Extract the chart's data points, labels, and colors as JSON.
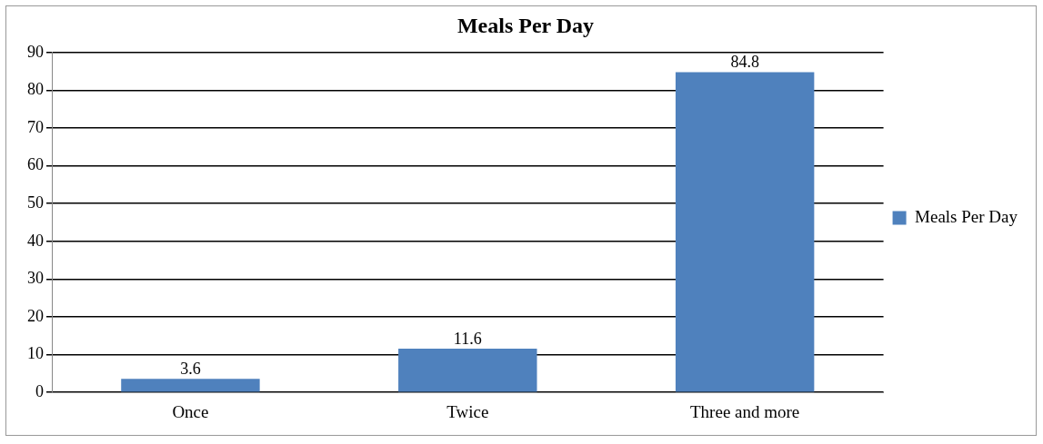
{
  "chart_data": {
    "type": "bar",
    "title": "Meals Per Day",
    "categories": [
      "Once",
      "Twice",
      "Three and more"
    ],
    "series": [
      {
        "name": "Meals Per Day",
        "color": "#4f81bd",
        "values": [
          3.6,
          11.6,
          84.8
        ]
      }
    ],
    "ylim": [
      0,
      90
    ],
    "yticks": [
      0,
      10,
      20,
      30,
      40,
      50,
      60,
      70,
      80,
      90
    ],
    "grid": "y",
    "legend": "right",
    "data_labels": true
  }
}
